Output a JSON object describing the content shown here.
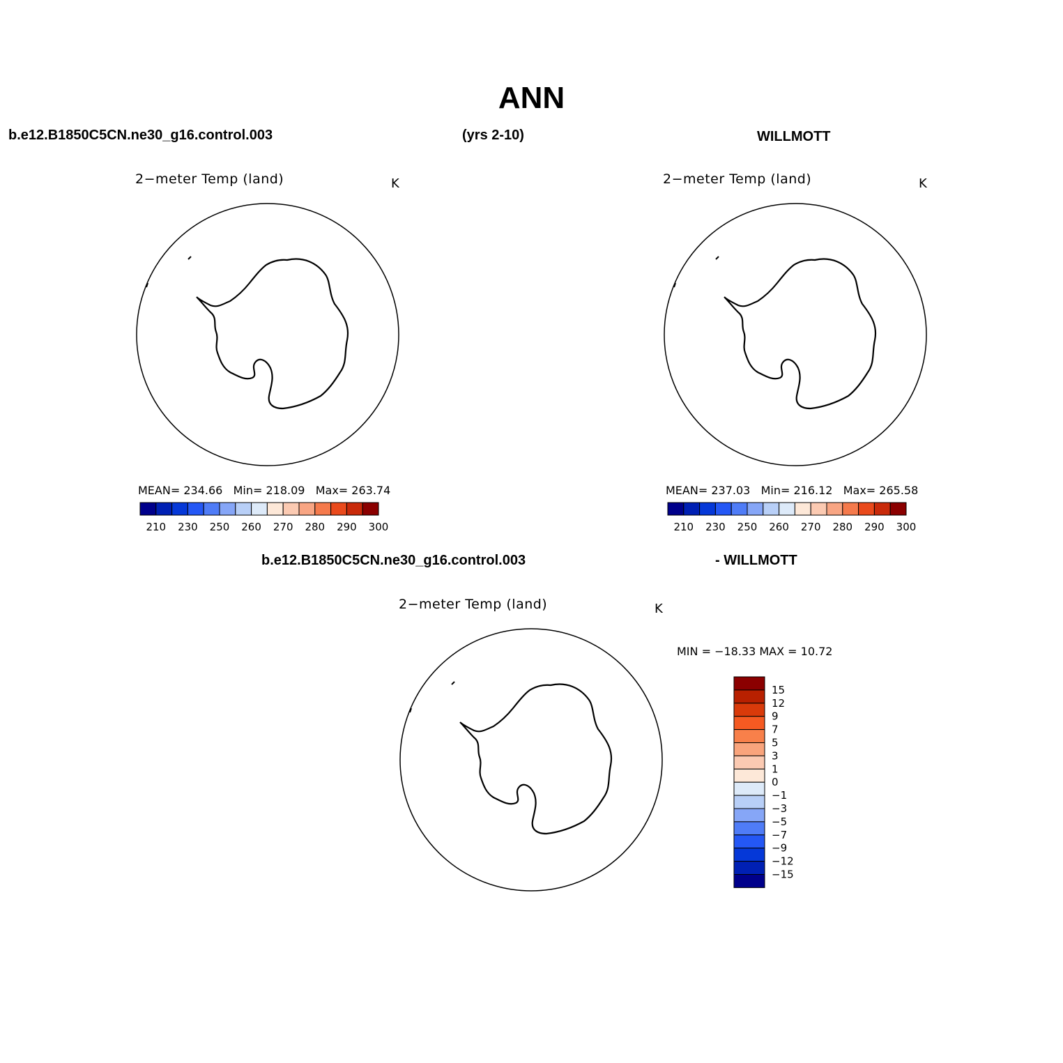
{
  "page": {
    "title": "ANN",
    "top_left_header": "b.e12.B1850C5CN.ne30_g16.control.003",
    "top_center_header": "(yrs 2-10)",
    "top_right_header": "WILLMOTT",
    "diff_left_header": "b.e12.B1850C5CN.ne30_g16.control.003",
    "diff_right_header": "- WILLMOTT"
  },
  "panels": {
    "model": {
      "variable": "2−meter Temp (land)",
      "units": "K",
      "stats": {
        "mean_label": "MEAN=",
        "mean": "234.66",
        "min_label": "Min=",
        "min": "218.09",
        "max_label": "Max=",
        "max": "263.74"
      }
    },
    "obs": {
      "variable": "2−meter Temp (land)",
      "units": "K",
      "stats": {
        "mean_label": "MEAN=",
        "mean": "237.03",
        "min_label": "Min=",
        "min": "216.12",
        "max_label": "Max=",
        "max": "265.58"
      }
    },
    "diff": {
      "variable": "2−meter Temp (land)",
      "units": "K",
      "minmax": "MIN = −18.33 MAX =   10.72"
    }
  },
  "colorbars": {
    "abs": {
      "colors": [
        "#00008b",
        "#0020b4",
        "#0538d8",
        "#2457f5",
        "#4f7cf7",
        "#86a6f7",
        "#b8cff7",
        "#ddeaf9",
        "#fde8d8",
        "#fbcab2",
        "#f8a583",
        "#f57a4c",
        "#ea4a1c",
        "#c92a0a",
        "#8b0000"
      ],
      "labels": [
        "210",
        "230",
        "250",
        "260",
        "270",
        "280",
        "290",
        "300"
      ]
    },
    "diff": {
      "colors_top_to_bottom": [
        "#8b0000",
        "#b82000",
        "#d93a0a",
        "#f55a22",
        "#f8804a",
        "#f9a47c",
        "#fbcab2",
        "#fde8d8",
        "#ddeaf9",
        "#b8cff7",
        "#86a6f7",
        "#4f7cf7",
        "#2457f5",
        "#0538d8",
        "#0020b4",
        "#00008b"
      ],
      "labels_top_to_bottom": [
        "15",
        "12",
        "9",
        "7",
        "5",
        "3",
        "1",
        "0",
        "−1",
        "−3",
        "−5",
        "−7",
        "−9",
        "−12",
        "−15"
      ]
    }
  }
}
